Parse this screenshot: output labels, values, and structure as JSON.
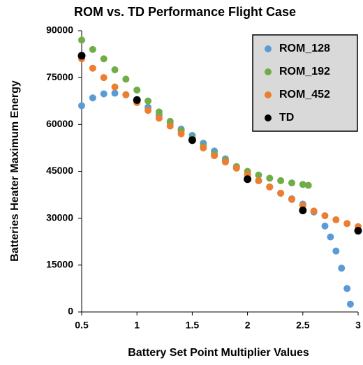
{
  "chart_data": {
    "type": "scatter",
    "title": "ROM vs. TD Performance Flight Case",
    "xlabel": "Battery Set Point Multiplier Values",
    "ylabel": "Batteries Heater Maximum Energy",
    "xlim": [
      0.5,
      3
    ],
    "xticks": [
      0.5,
      1,
      1.5,
      2,
      2.5,
      3
    ],
    "ylim": [
      0,
      90000
    ],
    "yticks": [
      0,
      15000,
      30000,
      45000,
      60000,
      75000,
      90000
    ],
    "grid": false,
    "legend": "upper right",
    "series": [
      {
        "name": "ROM_128",
        "color": "#5b9bd5",
        "x": [
          0.5,
          0.6,
          0.7,
          0.8,
          0.9,
          1.0,
          1.1,
          1.2,
          1.3,
          1.4,
          1.5,
          1.6,
          1.7,
          1.8,
          1.9,
          2.0,
          2.1,
          2.2,
          2.3,
          2.4,
          2.5,
          2.6,
          2.7,
          2.75,
          2.8,
          2.85,
          2.9,
          2.93
        ],
        "y": [
          66000,
          68500,
          69800,
          70000,
          69500,
          68000,
          65500,
          63000,
          60500,
          58500,
          56500,
          54000,
          51500,
          49000,
          46500,
          44000,
          42000,
          40000,
          38000,
          36200,
          34500,
          32000,
          27500,
          24000,
          19500,
          14000,
          7500,
          2500
        ]
      },
      {
        "name": "ROM_192",
        "color": "#70ad47",
        "x": [
          0.5,
          0.6,
          0.7,
          0.8,
          0.9,
          1.0,
          1.1,
          1.2,
          1.3,
          1.4,
          1.5,
          1.6,
          1.7,
          1.8,
          1.9,
          2.0,
          2.1,
          2.2,
          2.3,
          2.4,
          2.5,
          2.55
        ],
        "y": [
          87000,
          84000,
          81000,
          77500,
          74500,
          71000,
          67500,
          64000,
          61000,
          58000,
          55500,
          53000,
          50500,
          48500,
          46500,
          45000,
          43800,
          42800,
          42000,
          41300,
          40800,
          40500
        ]
      },
      {
        "name": "ROM_452",
        "color": "#ed7d31",
        "x": [
          0.5,
          0.6,
          0.7,
          0.8,
          0.9,
          1.0,
          1.1,
          1.2,
          1.3,
          1.4,
          1.5,
          1.6,
          1.7,
          1.8,
          1.9,
          2.0,
          2.1,
          2.2,
          2.3,
          2.4,
          2.5,
          2.6,
          2.7,
          2.8,
          2.9,
          3.0
        ],
        "y": [
          81000,
          78000,
          75000,
          72000,
          69500,
          67000,
          64500,
          62000,
          59500,
          57000,
          54800,
          52500,
          50000,
          48000,
          46000,
          44000,
          42000,
          40000,
          38000,
          36000,
          34000,
          32300,
          30800,
          29500,
          28300,
          27300
        ]
      },
      {
        "name": "TD",
        "color": "#000000",
        "x": [
          0.5,
          1,
          1.5,
          2,
          2.5,
          3
        ],
        "y": [
          82000,
          67800,
          55000,
          42500,
          32500,
          26000
        ]
      }
    ]
  }
}
